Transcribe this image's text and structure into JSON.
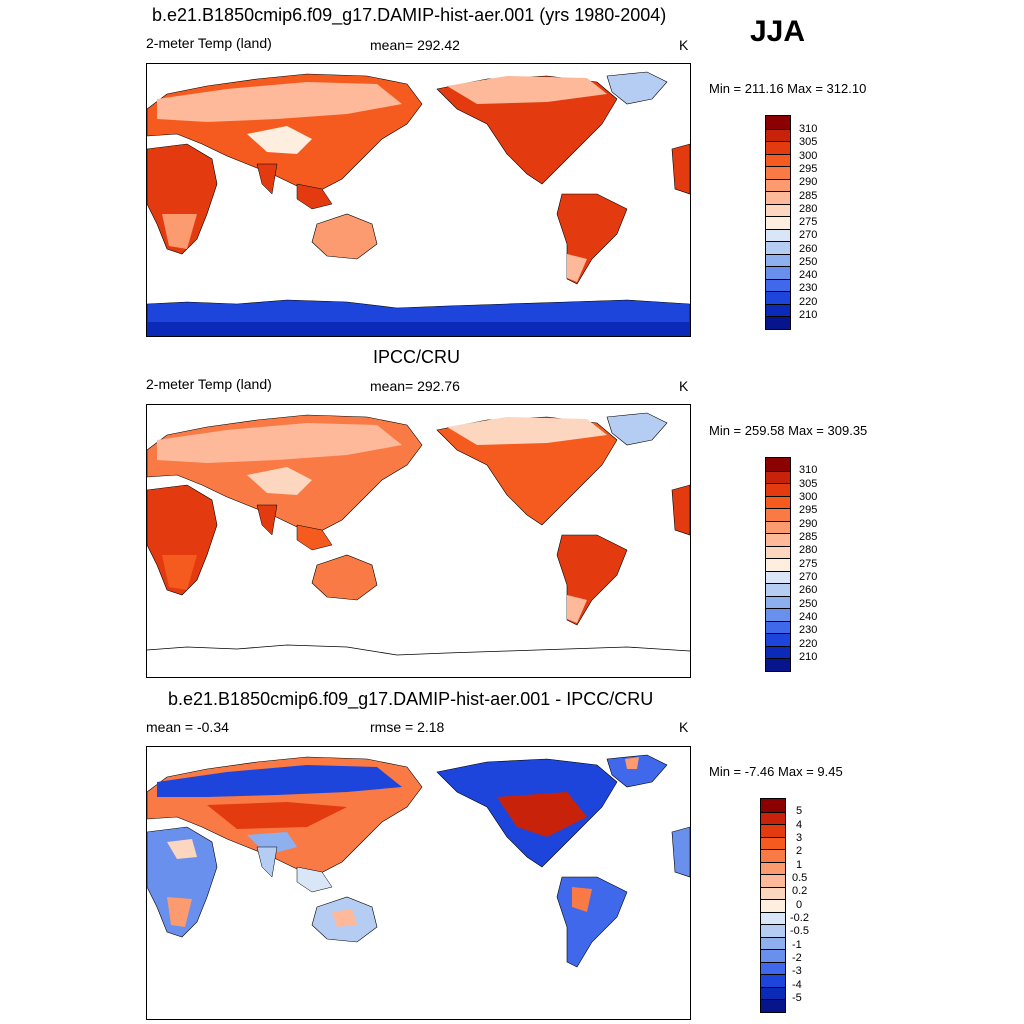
{
  "season": "JJA",
  "panels": [
    {
      "title": "b.e21.B1850cmip6.f09_g17.DAMIP-hist-aer.001 (yrs 1980-2004)",
      "left_label": "2-meter Temp (land)",
      "mid_label": "mean= 292.42",
      "units": "K",
      "minmax": "Min = 211.16 Max = 312.10",
      "colorbar_labels": [
        "310",
        "305",
        "300",
        "295",
        "290",
        "285",
        "280",
        "275",
        "270",
        "260",
        "250",
        "240",
        "230",
        "220",
        "210"
      ],
      "colors": [
        "#8b0000",
        "#c8230a",
        "#e33a0f",
        "#f55a1e",
        "#fa7a46",
        "#fc9a70",
        "#fdb99a",
        "#fdd6c0",
        "#fdeedf",
        "#d8e6f8",
        "#b6cdf3",
        "#8fb0ef",
        "#6a90ee",
        "#3f68ea",
        "#1d45dc",
        "#0c2ab8",
        "#06158c"
      ]
    },
    {
      "title": "IPCC/CRU",
      "left_label": "2-meter Temp (land)",
      "mid_label": "mean= 292.76",
      "units": "K",
      "minmax": "Min = 259.58 Max = 309.35",
      "colorbar_labels": [
        "310",
        "305",
        "300",
        "295",
        "290",
        "285",
        "280",
        "275",
        "270",
        "260",
        "250",
        "240",
        "230",
        "220",
        "210"
      ],
      "colors": [
        "#8b0000",
        "#c8230a",
        "#e33a0f",
        "#f55a1e",
        "#fa7a46",
        "#fc9a70",
        "#fdb99a",
        "#fdd6c0",
        "#fdeedf",
        "#d8e6f8",
        "#b6cdf3",
        "#8fb0ef",
        "#6a90ee",
        "#3f68ea",
        "#1d45dc",
        "#0c2ab8",
        "#06158c"
      ]
    },
    {
      "title": "b.e21.B1850cmip6.f09_g17.DAMIP-hist-aer.001 - IPCC/CRU",
      "left_label": "mean =  -0.34",
      "mid_label": "rmse =   2.18",
      "units": "K",
      "minmax": "Min =  -7.46 Max =   9.45",
      "colorbar_labels": [
        "5",
        "4",
        "3",
        "2",
        "1",
        "0.5",
        "0.2",
        "0",
        "-0.2",
        "-0.5",
        "-1",
        "-2",
        "-3",
        "-4",
        "-5"
      ],
      "colors": [
        "#8b0000",
        "#c8230a",
        "#e33a0f",
        "#f55a1e",
        "#fa7a46",
        "#fc9a70",
        "#fdb99a",
        "#fdd6c0",
        "#fdeedf",
        "#d8e6f8",
        "#b6cdf3",
        "#8fb0ef",
        "#6a90ee",
        "#3f68ea",
        "#1d45dc",
        "#0c2ab8",
        "#06158c"
      ]
    }
  ]
}
